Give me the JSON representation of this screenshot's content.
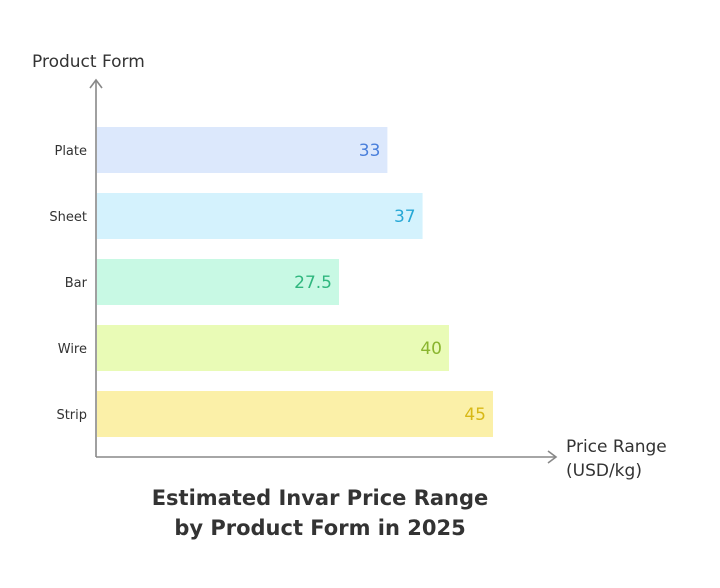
{
  "chart_data": {
    "type": "bar",
    "orientation": "horizontal",
    "title_lines": [
      "Estimated Invar Price Range",
      "by Product Form in 2025"
    ],
    "ylabel": "Product Form",
    "xlabel_lines": [
      "Price Range",
      "(USD/kg)"
    ],
    "categories": [
      "Plate",
      "Sheet",
      "Bar",
      "Wire",
      "Strip"
    ],
    "values": [
      33,
      37,
      27.5,
      40,
      45
    ],
    "value_labels": [
      "33",
      "37",
      "27.5",
      "40",
      "45"
    ],
    "xlim": [
      0,
      50
    ],
    "grid": false,
    "bar_colors": [
      "#dce8fc",
      "#d4f2fd",
      "#c8f9e4",
      "#e9fbb6",
      "#fbf0a8"
    ],
    "label_colors": [
      "#4a7fdb",
      "#27a8d6",
      "#2fb77e",
      "#8ab52f",
      "#d8b816"
    ]
  }
}
